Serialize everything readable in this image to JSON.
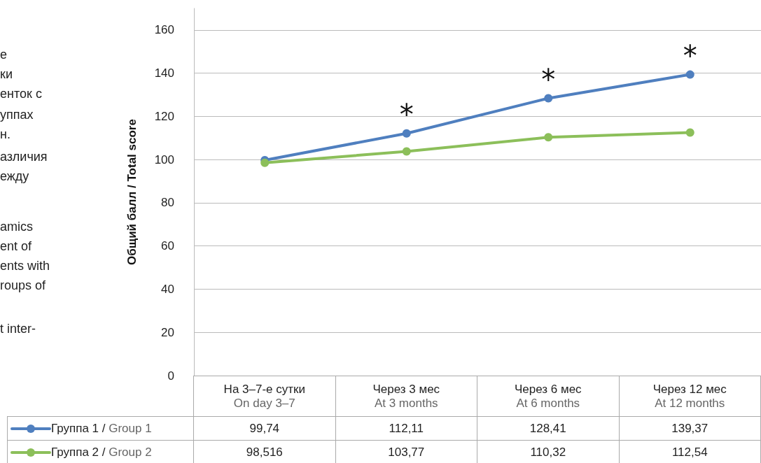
{
  "chart_data": {
    "type": "line",
    "ylabel": "Общий балл / Total score",
    "categories": [
      "На 3–7-е сутки\nOn day 3–7",
      "Через 3 мес\nAt 3 months",
      "Через 6 мес\nAt 6 months",
      "Через 12 мес\nAt 12 months"
    ],
    "series": [
      {
        "name": "Группа 1 / Group 1",
        "color": "#4f7fbf",
        "values": [
          99.74,
          112.11,
          128.41,
          139.37
        ]
      },
      {
        "name": "Группа 2 / Group 2",
        "color": "#8cbf5a",
        "values": [
          98.516,
          103.77,
          110.32,
          112.54
        ]
      }
    ],
    "value_labels": [
      [
        "99,74",
        "112,11",
        "128,41",
        "139,37"
      ],
      [
        "98,516",
        "103,77",
        "110,32",
        "112,54"
      ]
    ],
    "ylim": [
      0,
      170
    ],
    "yticks": [
      0,
      20,
      40,
      60,
      80,
      100,
      120,
      140,
      160
    ],
    "grid": "y",
    "legend": "bottom",
    "marker": "circle",
    "line_style": "solid",
    "annotations": [
      {
        "text": "*",
        "x": "Через 3 мес\nAt 3 months",
        "y": 112.11
      },
      {
        "text": "*",
        "x": "Через 6 мес\nAt 6 months",
        "y": 128.41
      },
      {
        "text": "*",
        "x": "Через 12 мес\nAt 12 months",
        "y": 139.37
      },
      "е",
      "ки",
      "енток с",
      "уппах",
      "н.",
      "азличия",
      "ежду",
      "amics",
      "ent of",
      "ents with",
      "roups of",
      "t inter-"
    ]
  }
}
